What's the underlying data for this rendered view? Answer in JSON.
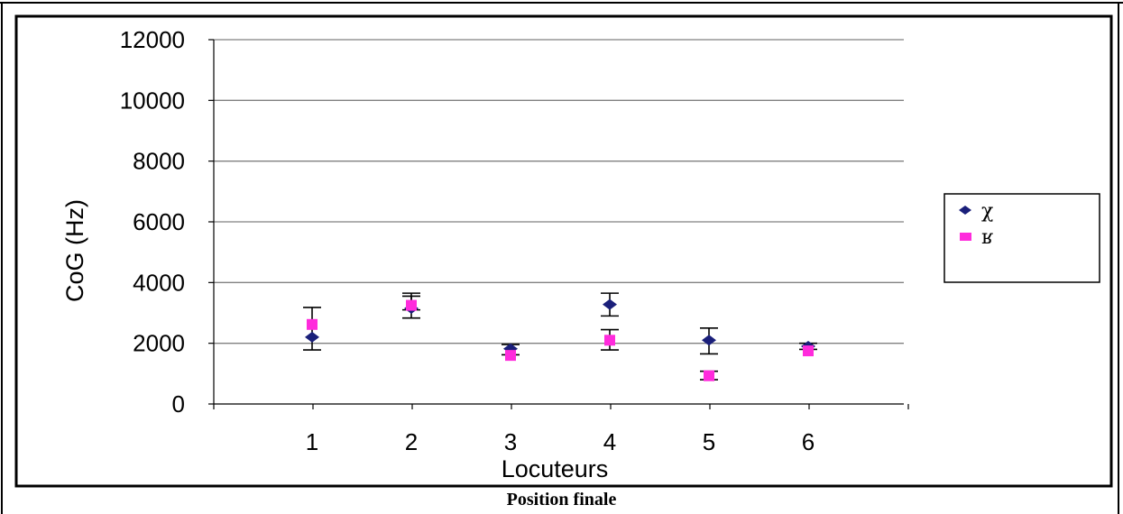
{
  "caption": "Position finale",
  "colors": {
    "series_1": "#1a1f7a",
    "series_2": "#ff2bdc",
    "grid": "#808080",
    "axis": "#000000",
    "errorbar": "#000000"
  },
  "chart_data": {
    "type": "scatter",
    "xlabel": "Locuteurs",
    "ylabel": "CoG (Hz)",
    "categories": [
      "1",
      "2",
      "3",
      "4",
      "5",
      "6"
    ],
    "ylim": [
      0,
      12000
    ],
    "yticks": [
      "0",
      "2000",
      "4000",
      "6000",
      "8000",
      "10000",
      "12000"
    ],
    "grid": "horizontal",
    "legend_position": "right",
    "series": [
      {
        "name": "χ",
        "marker": "diamond",
        "values": [
          2200,
          3150,
          1820,
          3280,
          2100,
          1900
        ],
        "error": [
          [
            1780,
            3180
          ],
          [
            2830,
            3650
          ],
          [
            1620,
            1960
          ],
          [
            2900,
            3650
          ],
          [
            1650,
            2500
          ],
          [
            1800,
            2000
          ]
        ]
      },
      {
        "name": "ʁ",
        "marker": "square",
        "values": [
          2620,
          3250,
          1600,
          2100,
          930,
          1750
        ],
        "error": [
          [
            null,
            null
          ],
          [
            3100,
            3550
          ],
          [
            null,
            null
          ],
          [
            1780,
            2450
          ],
          [
            800,
            1080
          ],
          [
            null,
            null
          ]
        ]
      }
    ]
  }
}
